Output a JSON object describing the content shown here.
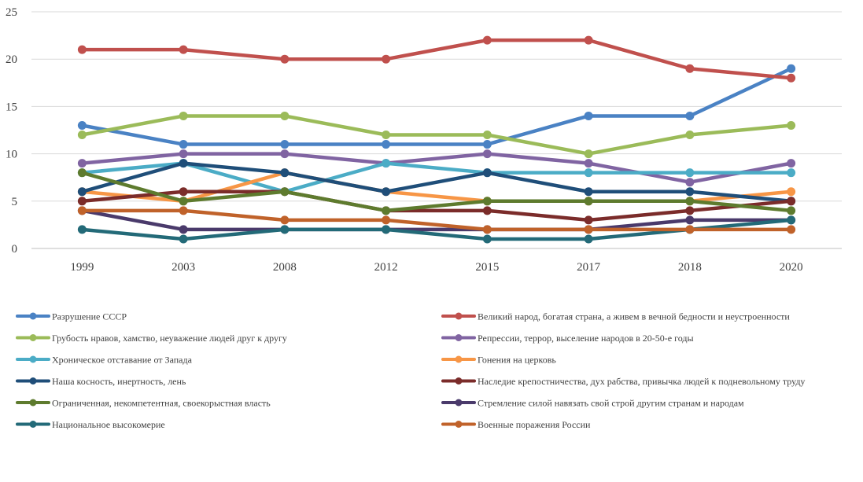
{
  "chart_data": {
    "type": "line",
    "title": "",
    "xlabel": "",
    "ylabel": "",
    "categories": [
      "1999",
      "2003",
      "2008",
      "2012",
      "2015",
      "2017",
      "2018",
      "2020"
    ],
    "ylim": [
      0,
      25
    ],
    "yticks": [
      0,
      5,
      10,
      15,
      20,
      25
    ],
    "grid": true,
    "legend_position": "bottom",
    "series": [
      {
        "name": "Разрушение СССР",
        "color": "#4a82c4",
        "values": [
          13,
          11,
          11,
          11,
          11,
          14,
          14,
          19
        ]
      },
      {
        "name": "Великий народ, богатая страна, а живем в вечной бедности и неустроенности",
        "color": "#c0504d",
        "values": [
          21,
          21,
          20,
          20,
          22,
          22,
          19,
          18
        ]
      },
      {
        "name": "Грубость нравов, хамство, неуважение людей друг к другу",
        "color": "#9bbb59",
        "values": [
          12,
          14,
          14,
          12,
          12,
          10,
          12,
          13
        ]
      },
      {
        "name": "Репрессии, террор, выселение народов в 20-50-е годы",
        "color": "#8064a2",
        "values": [
          9,
          10,
          10,
          9,
          10,
          9,
          7,
          9
        ]
      },
      {
        "name": "Хроническое отставание от Запада",
        "color": "#4bacc6",
        "values": [
          8,
          9,
          6,
          9,
          8,
          8,
          8,
          8
        ]
      },
      {
        "name": "Гонения на церковь",
        "color": "#f79646",
        "values": [
          6,
          5,
          8,
          6,
          5,
          5,
          5,
          6
        ]
      },
      {
        "name": "Наша косность, инертность, лень",
        "color": "#1f4e79",
        "values": [
          6,
          9,
          8,
          6,
          8,
          6,
          6,
          5
        ]
      },
      {
        "name": "Наследие крепостничества, дух рабства, привычка людей к подневольному труду",
        "color": "#7b2c2a",
        "values": [
          5,
          6,
          6,
          4,
          4,
          3,
          4,
          5
        ]
      },
      {
        "name": "Ограниченная, некомпетентная, своекорыстная власть",
        "color": "#5e7b2e",
        "values": [
          8,
          5,
          6,
          4,
          5,
          5,
          5,
          4
        ]
      },
      {
        "name": "Стремление силой навязать свой строй другим странам и народам",
        "color": "#4a3a6b",
        "values": [
          4,
          2,
          2,
          2,
          2,
          2,
          3,
          3
        ]
      },
      {
        "name": "Национальное высокомерие",
        "color": "#236a78",
        "values": [
          2,
          1,
          2,
          2,
          1,
          1,
          2,
          3
        ]
      },
      {
        "name": "Военные поражения России",
        "color": "#c0622a",
        "values": [
          4,
          4,
          3,
          3,
          2,
          2,
          2,
          2
        ]
      }
    ]
  }
}
